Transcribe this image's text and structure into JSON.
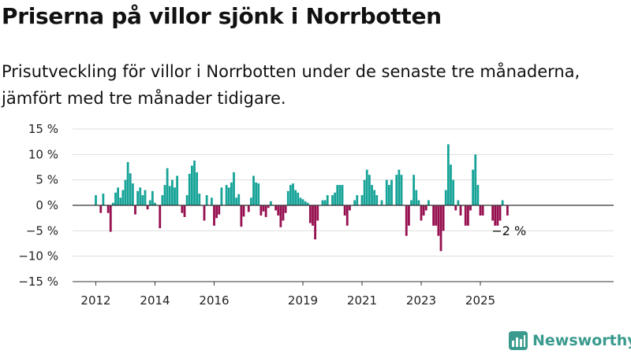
{
  "title": "Priserna på villor sjönk i Norrbotten",
  "subtitle": "Prisutveckling för villor i Norrbotten under de senaste tre månaderna, jämfört med tre månader tidigare.",
  "brand": "Newsworthy",
  "colors": {
    "positive": "#17a398",
    "negative": "#960f4f",
    "grid": "#dddddd",
    "brand": "#3a9a8e"
  },
  "chart_data": {
    "type": "bar",
    "ylim": [
      -15,
      15
    ],
    "y_ticks": [
      {
        "value": 15,
        "label": "15 %"
      },
      {
        "value": 10,
        "label": "10 %"
      },
      {
        "value": 5,
        "label": "5 %"
      },
      {
        "value": 0,
        "label": "0 %"
      },
      {
        "value": -5,
        "label": "−5 %"
      },
      {
        "value": -10,
        "label": "−10 %"
      },
      {
        "value": -15,
        "label": "−15 %"
      }
    ],
    "x_ticks": [
      "2012",
      "2014",
      "2016",
      "2019",
      "2021",
      "2023",
      "2025"
    ],
    "x_start": "2012-01",
    "values": [
      2.0,
      0.0,
      -1.5,
      2.3,
      0.0,
      -1.5,
      -5.2,
      0.5,
      2.5,
      3.5,
      1.5,
      3.0,
      5.0,
      8.5,
      6.3,
      4.3,
      -1.8,
      2.8,
      3.5,
      2.0,
      3.0,
      -0.8,
      1.0,
      2.8,
      0.5,
      0.0,
      -4.5,
      2.0,
      4.0,
      7.3,
      3.8,
      5.0,
      3.5,
      5.8,
      0.0,
      -1.5,
      -2.3,
      2.0,
      6.2,
      7.8,
      8.8,
      6.5,
      2.3,
      0.0,
      -3.0,
      2.0,
      0.0,
      1.5,
      -4.0,
      -2.5,
      -1.8,
      3.5,
      0.0,
      4.0,
      3.5,
      4.5,
      6.5,
      1.5,
      2.2,
      -4.2,
      -2.2,
      0.0,
      -1.3,
      1.5,
      5.8,
      4.5,
      4.3,
      -2.0,
      -1.2,
      -2.3,
      -0.5,
      0.8,
      0.0,
      -1.0,
      -2.0,
      -4.3,
      -3.0,
      -1.5,
      2.8,
      4.0,
      4.3,
      3.0,
      2.5,
      1.5,
      1.2,
      0.8,
      0.5,
      -3.5,
      -4.0,
      -6.7,
      -3.0,
      0.0,
      1.0,
      1.0,
      2.0,
      0.0,
      2.0,
      2.5,
      4.0,
      4.0,
      4.0,
      -2.0,
      -4.0,
      -1.0,
      0.0,
      1.0,
      2.0,
      0.0,
      2.0,
      5.0,
      7.0,
      6.0,
      4.0,
      3.0,
      2.0,
      0.0,
      1.0,
      0.0,
      5.0,
      4.0,
      5.0,
      0.0,
      6.0,
      7.0,
      6.0,
      0.0,
      -6.0,
      -4.0,
      1.0,
      6.0,
      3.0,
      1.0,
      -3.0,
      -2.0,
      -1.0,
      1.0,
      0.0,
      -4.0,
      -4.0,
      -6.0,
      -9.0,
      -5.0,
      3.0,
      12.0,
      8.0,
      5.0,
      -1.0,
      1.0,
      -2.0,
      0.0,
      -4.0,
      -4.0,
      -1.0,
      7.0,
      10.0,
      4.0,
      -2.0,
      -2.0,
      0.0,
      0.0,
      0.0,
      -3.0,
      -4.0,
      -4.0,
      -3.0,
      1.0,
      0.0,
      -2.0
    ],
    "annotations": [
      {
        "label": "−2 %"
      }
    ]
  }
}
